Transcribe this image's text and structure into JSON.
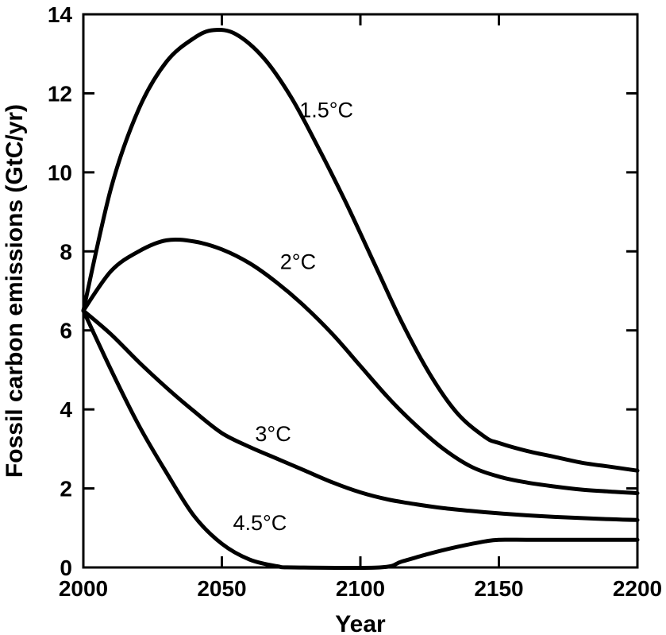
{
  "chart_data": {
    "type": "line",
    "title": "",
    "xlabel": "Year",
    "ylabel": "Fossil carbon emissions (GtC/yr)",
    "xlim": [
      2000,
      2200
    ],
    "ylim": [
      0,
      14
    ],
    "xticks": [
      2000,
      2050,
      2100,
      2150,
      2200
    ],
    "yticks": [
      0,
      2,
      4,
      6,
      8,
      10,
      12,
      14
    ],
    "grid": false,
    "legend": "none",
    "series": [
      {
        "name": "1.5°C",
        "x": [
          2000,
          2010,
          2020,
          2030,
          2040,
          2047,
          2055,
          2065,
          2075,
          2085,
          2095,
          2105,
          2115,
          2125,
          2135,
          2145,
          2150,
          2160,
          2170,
          2180,
          2190,
          2200
        ],
        "y": [
          6.5,
          9.6,
          11.6,
          12.8,
          13.4,
          13.6,
          13.5,
          12.9,
          11.9,
          10.6,
          9.2,
          7.7,
          6.2,
          4.9,
          3.9,
          3.3,
          3.15,
          2.95,
          2.8,
          2.65,
          2.55,
          2.45
        ]
      },
      {
        "name": "2°C",
        "x": [
          2000,
          2010,
          2020,
          2030,
          2040,
          2050,
          2060,
          2070,
          2080,
          2090,
          2100,
          2110,
          2120,
          2130,
          2140,
          2150,
          2160,
          2170,
          2180,
          2190,
          2200
        ],
        "y": [
          6.5,
          7.5,
          8.0,
          8.28,
          8.25,
          8.05,
          7.7,
          7.2,
          6.6,
          5.9,
          5.1,
          4.3,
          3.6,
          3.0,
          2.55,
          2.3,
          2.15,
          2.05,
          1.97,
          1.92,
          1.88
        ]
      },
      {
        "name": "3°C",
        "x": [
          2000,
          2010,
          2020,
          2030,
          2040,
          2050,
          2060,
          2070,
          2080,
          2090,
          2100,
          2110,
          2120,
          2130,
          2140,
          2150,
          2160,
          2170,
          2180,
          2190,
          2200
        ],
        "y": [
          6.5,
          5.9,
          5.2,
          4.55,
          3.95,
          3.4,
          3.05,
          2.75,
          2.45,
          2.15,
          1.9,
          1.72,
          1.6,
          1.5,
          1.43,
          1.37,
          1.32,
          1.28,
          1.25,
          1.22,
          1.2
        ]
      },
      {
        "name": "4.5°C",
        "x": [
          2000,
          2010,
          2020,
          2030,
          2040,
          2050,
          2060,
          2070,
          2076,
          2107,
          2115,
          2125,
          2135,
          2145,
          2150,
          2160,
          2170,
          2180,
          2190,
          2200
        ],
        "y": [
          6.5,
          5.0,
          3.6,
          2.4,
          1.3,
          0.6,
          0.2,
          0.03,
          0.0,
          0.0,
          0.15,
          0.35,
          0.52,
          0.66,
          0.7,
          0.7,
          0.7,
          0.7,
          0.7,
          0.7
        ]
      }
    ],
    "annotations": [
      {
        "text": "1.5°C",
        "x": 2078,
        "y": 11.4
      },
      {
        "text": "2°C",
        "x": 2071,
        "y": 7.55
      },
      {
        "text": "3°C",
        "x": 2062,
        "y": 3.2
      },
      {
        "text": "4.5°C",
        "x": 2054,
        "y": 0.95
      }
    ]
  }
}
